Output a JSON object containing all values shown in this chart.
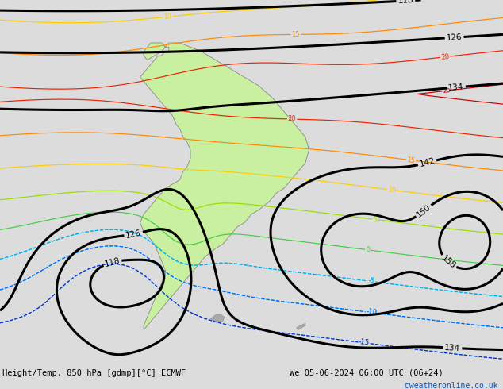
{
  "title_left": "Height/Temp. 850 hPa [gdmp][°C] ECMWF",
  "title_right": "We 05-06-2024 06:00 UTC (06+24)",
  "copyright": "©weatheronline.co.uk",
  "bg_map": "#dcdcdc",
  "land_color": "#c8f0a0",
  "land_edge": "#888888",
  "footer_bg": "#ffffff",
  "footer_text": "#000000",
  "copyright_color": "#0055cc",
  "lon_min": -120,
  "lon_max": 20,
  "lat_min": -62,
  "lat_max": 22,
  "fig_width": 6.34,
  "fig_height": 4.9,
  "dpi": 100,
  "z_levels": [
    118,
    126,
    134,
    142,
    150,
    158
  ],
  "temp_config": [
    [
      -15,
      "#4488ff",
      true
    ],
    [
      -10,
      "#00bbff",
      true
    ],
    [
      -5,
      "#00dddd",
      true
    ],
    [
      0,
      "#44cc44",
      false
    ],
    [
      5,
      "#99dd00",
      false
    ],
    [
      10,
      "#ffcc00",
      false
    ],
    [
      15,
      "#ff8800",
      false
    ],
    [
      20,
      "#ee2200",
      false
    ],
    [
      25,
      "#cc0000",
      false
    ]
  ]
}
